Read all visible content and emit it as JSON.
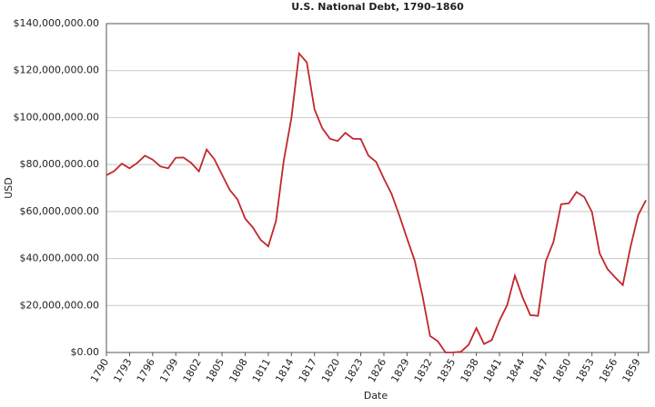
{
  "chart_data": {
    "type": "line",
    "title": "U.S. National Debt, 1790–1860",
    "x_label": "Date",
    "y_label": "USD",
    "x": [
      1790,
      1791,
      1792,
      1793,
      1794,
      1795,
      1796,
      1797,
      1798,
      1799,
      1800,
      1801,
      1802,
      1803,
      1804,
      1805,
      1806,
      1807,
      1808,
      1809,
      1810,
      1811,
      1812,
      1813,
      1814,
      1815,
      1816,
      1817,
      1818,
      1819,
      1820,
      1821,
      1822,
      1823,
      1824,
      1825,
      1826,
      1827,
      1828,
      1829,
      1830,
      1831,
      1832,
      1833,
      1834,
      1835,
      1836,
      1837,
      1838,
      1839,
      1840,
      1841,
      1842,
      1843,
      1844,
      1845,
      1846,
      1847,
      1848,
      1849,
      1850,
      1851,
      1852,
      1853,
      1854,
      1855,
      1856,
      1857,
      1858,
      1859,
      1860
    ],
    "series": [
      {
        "name": "USD",
        "color": "#c1272d",
        "values": [
          75500000,
          77200000,
          80400000,
          78400000,
          80700000,
          83800000,
          82100000,
          79200000,
          78400000,
          82900000,
          83000000,
          80700000,
          77100000,
          86400000,
          82300000,
          75700000,
          69200000,
          65200000,
          57000000,
          53200000,
          48000000,
          45200000,
          56000000,
          81500000,
          99800000,
          127300000,
          123500000,
          103500000,
          95500000,
          91000000,
          90000000,
          93500000,
          91000000,
          90900000,
          83800000,
          81100000,
          74000000,
          67500000,
          58400000,
          48600000,
          39100000,
          24300000,
          7000000,
          4800000,
          0,
          40000,
          300000,
          3300000,
          10400000,
          3600000,
          5300000,
          13600000,
          20200000,
          32700000,
          23500000,
          15900000,
          15600000,
          38800000,
          47000000,
          63100000,
          63500000,
          68300000,
          66200000,
          59800000,
          42200000,
          35600000,
          32000000,
          28700000,
          44900000,
          58500000,
          64800000
        ]
      }
    ],
    "xlim": [
      1790,
      1860
    ],
    "xticks": [
      1790,
      1793,
      1796,
      1799,
      1802,
      1805,
      1808,
      1811,
      1814,
      1817,
      1820,
      1823,
      1826,
      1829,
      1832,
      1835,
      1838,
      1841,
      1844,
      1847,
      1850,
      1853,
      1856,
      1859
    ],
    "ylim": [
      0,
      140000000
    ],
    "yticks": [
      {
        "value": 0,
        "label": "$0.00"
      },
      {
        "value": 20000000,
        "label": "$20,000,000.00"
      },
      {
        "value": 40000000,
        "label": "$40,000,000.00"
      },
      {
        "value": 60000000,
        "label": "$60,000,000.00"
      },
      {
        "value": 80000000,
        "label": "$80,000,000.00"
      },
      {
        "value": 100000000,
        "label": "$100,000,000.00"
      },
      {
        "value": 120000000,
        "label": "$120,000,000.00"
      },
      {
        "value": 140000000,
        "label": "$140,000,000.00"
      }
    ],
    "grid": true
  }
}
